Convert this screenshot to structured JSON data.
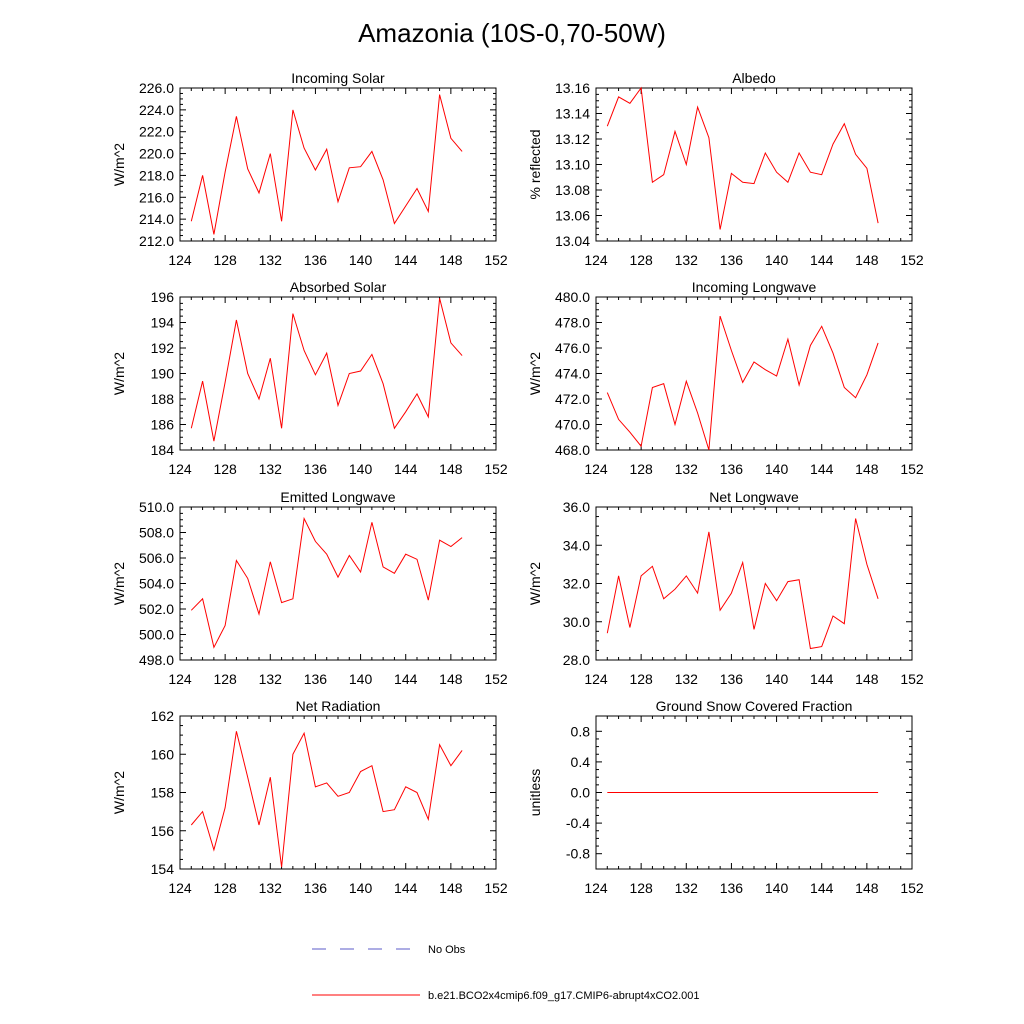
{
  "main_title": "Amazonia (10S-0,70-50W)",
  "chart_data": [
    {
      "type": "line",
      "title": "Incoming Solar",
      "ylabel": "W/m^2",
      "xlabel": "",
      "xlim": [
        124,
        152
      ],
      "ylim": [
        212,
        226
      ],
      "xticks": [
        124,
        128,
        132,
        136,
        140,
        144,
        148,
        152
      ],
      "xtick_labels": [
        "124",
        "128",
        "132",
        "136",
        "140",
        "144",
        "148",
        "152"
      ],
      "yticks": [
        212,
        214,
        216,
        218,
        220,
        222,
        224,
        226
      ],
      "ytick_labels": [
        "212.0",
        "214.0",
        "216.0",
        "218.0",
        "220.0",
        "222.0",
        "224.0",
        "226.0"
      ],
      "x": [
        125,
        126,
        127,
        128,
        129,
        130,
        131,
        132,
        133,
        134,
        135,
        136,
        137,
        138,
        139,
        140,
        141,
        142,
        143,
        144,
        145,
        146,
        147,
        148,
        149
      ],
      "values": [
        213.8,
        218.0,
        212.6,
        218.3,
        223.4,
        218.6,
        216.4,
        220.0,
        213.8,
        224.0,
        220.5,
        218.5,
        220.4,
        215.6,
        218.7,
        218.8,
        220.2,
        217.6,
        213.6,
        215.2,
        216.8,
        214.7,
        225.4,
        221.4,
        220.2
      ]
    },
    {
      "type": "line",
      "title": "Albedo",
      "ylabel": "% reflected",
      "xlabel": "",
      "xlim": [
        124,
        152
      ],
      "ylim": [
        13.04,
        13.16
      ],
      "xticks": [
        124,
        128,
        132,
        136,
        140,
        144,
        148,
        152
      ],
      "xtick_labels": [
        "124",
        "128",
        "132",
        "136",
        "140",
        "144",
        "148",
        "152"
      ],
      "yticks": [
        13.04,
        13.06,
        13.08,
        13.1,
        13.12,
        13.14,
        13.16
      ],
      "ytick_labels": [
        "13.04",
        "13.06",
        "13.08",
        "13.10",
        "13.12",
        "13.14",
        "13.16"
      ],
      "x": [
        125,
        126,
        127,
        128,
        129,
        130,
        131,
        132,
        133,
        134,
        135,
        136,
        137,
        138,
        139,
        140,
        141,
        142,
        143,
        144,
        145,
        146,
        147,
        148,
        149
      ],
      "values": [
        13.13,
        13.153,
        13.148,
        13.16,
        13.086,
        13.092,
        13.126,
        13.1,
        13.145,
        13.121,
        13.049,
        13.093,
        13.086,
        13.085,
        13.109,
        13.094,
        13.086,
        13.109,
        13.094,
        13.092,
        13.116,
        13.132,
        13.108,
        13.097,
        13.054
      ]
    },
    {
      "type": "line",
      "title": "Absorbed Solar",
      "ylabel": "W/m^2",
      "xlabel": "",
      "xlim": [
        124,
        152
      ],
      "ylim": [
        184,
        196
      ],
      "xticks": [
        124,
        128,
        132,
        136,
        140,
        144,
        148,
        152
      ],
      "xtick_labels": [
        "124",
        "128",
        "132",
        "136",
        "140",
        "144",
        "148",
        "152"
      ],
      "yticks": [
        184,
        186,
        188,
        190,
        192,
        194,
        196
      ],
      "ytick_labels": [
        "184",
        "186",
        "188",
        "190",
        "192",
        "194",
        "196"
      ],
      "x": [
        125,
        126,
        127,
        128,
        129,
        130,
        131,
        132,
        133,
        134,
        135,
        136,
        137,
        138,
        139,
        140,
        141,
        142,
        143,
        144,
        145,
        146,
        147,
        148,
        149
      ],
      "values": [
        185.7,
        189.4,
        184.7,
        189.3,
        194.2,
        190.0,
        188.0,
        191.2,
        185.7,
        194.7,
        191.8,
        189.9,
        191.6,
        187.5,
        190.0,
        190.2,
        191.5,
        189.2,
        185.7,
        187.0,
        188.4,
        186.6,
        195.9,
        192.4,
        191.4
      ]
    },
    {
      "type": "line",
      "title": "Incoming Longwave",
      "ylabel": "W/m^2",
      "xlabel": "",
      "xlim": [
        124,
        152
      ],
      "ylim": [
        468,
        480
      ],
      "xticks": [
        124,
        128,
        132,
        136,
        140,
        144,
        148,
        152
      ],
      "xtick_labels": [
        "124",
        "128",
        "132",
        "136",
        "140",
        "144",
        "148",
        "152"
      ],
      "yticks": [
        468,
        470,
        472,
        474,
        476,
        478,
        480
      ],
      "ytick_labels": [
        "468.0",
        "470.0",
        "472.0",
        "474.0",
        "476.0",
        "478.0",
        "480.0"
      ],
      "x": [
        125,
        126,
        127,
        128,
        129,
        130,
        131,
        132,
        133,
        134,
        135,
        136,
        137,
        138,
        139,
        140,
        141,
        142,
        143,
        144,
        145,
        146,
        147,
        148,
        149
      ],
      "values": [
        472.5,
        470.4,
        469.4,
        468.3,
        472.9,
        473.2,
        470.0,
        473.4,
        470.9,
        468.0,
        478.5,
        475.8,
        473.3,
        474.9,
        474.3,
        473.8,
        476.7,
        473.1,
        476.2,
        477.7,
        475.6,
        472.9,
        472.1,
        473.9,
        476.4
      ]
    },
    {
      "type": "line",
      "title": "Emitted Longwave",
      "ylabel": "W/m^2",
      "xlabel": "",
      "xlim": [
        124,
        152
      ],
      "ylim": [
        498,
        510
      ],
      "xticks": [
        124,
        128,
        132,
        136,
        140,
        144,
        148,
        152
      ],
      "xtick_labels": [
        "124",
        "128",
        "132",
        "136",
        "140",
        "144",
        "148",
        "152"
      ],
      "yticks": [
        498,
        500,
        502,
        504,
        506,
        508,
        510
      ],
      "ytick_labels": [
        "498.0",
        "500.0",
        "502.0",
        "504.0",
        "506.0",
        "508.0",
        "510.0"
      ],
      "x": [
        125,
        126,
        127,
        128,
        129,
        130,
        131,
        132,
        133,
        134,
        135,
        136,
        137,
        138,
        139,
        140,
        141,
        142,
        143,
        144,
        145,
        146,
        147,
        148,
        149
      ],
      "values": [
        501.9,
        502.8,
        499.0,
        500.7,
        505.8,
        504.4,
        501.6,
        505.7,
        502.5,
        502.8,
        509.1,
        507.3,
        506.3,
        504.5,
        506.2,
        504.9,
        508.8,
        505.3,
        504.8,
        506.3,
        505.9,
        502.7,
        507.4,
        506.9,
        507.6
      ]
    },
    {
      "type": "line",
      "title": "Net Longwave",
      "ylabel": "W/m^2",
      "xlabel": "",
      "xlim": [
        124,
        152
      ],
      "ylim": [
        28,
        36
      ],
      "xticks": [
        124,
        128,
        132,
        136,
        140,
        144,
        148,
        152
      ],
      "xtick_labels": [
        "124",
        "128",
        "132",
        "136",
        "140",
        "144",
        "148",
        "152"
      ],
      "yticks": [
        28,
        30,
        32,
        34,
        36
      ],
      "ytick_labels": [
        "28.0",
        "30.0",
        "32.0",
        "34.0",
        "36.0"
      ],
      "x": [
        125,
        126,
        127,
        128,
        129,
        130,
        131,
        132,
        133,
        134,
        135,
        136,
        137,
        138,
        139,
        140,
        141,
        142,
        143,
        144,
        145,
        146,
        147,
        148,
        149
      ],
      "values": [
        29.4,
        32.4,
        29.7,
        32.4,
        32.9,
        31.2,
        31.7,
        32.4,
        31.5,
        34.7,
        30.6,
        31.5,
        33.1,
        29.6,
        32.0,
        31.1,
        32.1,
        32.2,
        28.6,
        28.7,
        30.3,
        29.9,
        35.4,
        33.0,
        31.2
      ]
    },
    {
      "type": "line",
      "title": "Net Radiation",
      "ylabel": "W/m^2",
      "xlabel": "",
      "xlim": [
        124,
        152
      ],
      "ylim": [
        154,
        162
      ],
      "xticks": [
        124,
        128,
        132,
        136,
        140,
        144,
        148,
        152
      ],
      "xtick_labels": [
        "124",
        "128",
        "132",
        "136",
        "140",
        "144",
        "148",
        "152"
      ],
      "yticks": [
        154,
        156,
        158,
        160,
        162
      ],
      "ytick_labels": [
        "154",
        "156",
        "158",
        "160",
        "162"
      ],
      "x": [
        125,
        126,
        127,
        128,
        129,
        130,
        131,
        132,
        133,
        134,
        135,
        136,
        137,
        138,
        139,
        140,
        141,
        142,
        143,
        144,
        145,
        146,
        147,
        148,
        149
      ],
      "values": [
        156.3,
        157.0,
        155.0,
        157.2,
        161.2,
        158.8,
        156.3,
        158.8,
        154.1,
        160.0,
        161.1,
        158.3,
        158.5,
        157.8,
        158.0,
        159.1,
        159.4,
        157.0,
        157.1,
        158.3,
        158.0,
        156.6,
        160.5,
        159.4,
        160.2
      ]
    },
    {
      "type": "line",
      "title": "Ground Snow Covered Fraction",
      "ylabel": "unitless",
      "xlabel": "",
      "xlim": [
        124,
        152
      ],
      "ylim": [
        -1.0,
        1.0
      ],
      "xticks": [
        124,
        128,
        132,
        136,
        140,
        144,
        148,
        152
      ],
      "xtick_labels": [
        "124",
        "128",
        "132",
        "136",
        "140",
        "144",
        "148",
        "152"
      ],
      "yticks": [
        -0.8,
        -0.4,
        0.0,
        0.4,
        0.8
      ],
      "ytick_labels": [
        "-0.8",
        "-0.4",
        "0.0",
        "0.4",
        "0.8"
      ],
      "x": [
        125,
        126,
        127,
        128,
        129,
        130,
        131,
        132,
        133,
        134,
        135,
        136,
        137,
        138,
        139,
        140,
        141,
        142,
        143,
        144,
        145,
        146,
        147,
        148,
        149
      ],
      "values": [
        0,
        0,
        0,
        0,
        0,
        0,
        0,
        0,
        0,
        0,
        0,
        0,
        0,
        0,
        0,
        0,
        0,
        0,
        0,
        0,
        0,
        0,
        0,
        0,
        0
      ]
    }
  ],
  "legend": {
    "placement": "bottom-center",
    "entries": [
      {
        "label": "No Obs",
        "color": "#5b5bc8",
        "style": "dashed"
      },
      {
        "label": "b.e21.BCO2x4cmip6.f09_g17.CMIP6-abrupt4xCO2.001",
        "color": "#ff0000",
        "style": "solid"
      }
    ]
  },
  "colors": {
    "series": "#ff0000",
    "axes": "#000000",
    "obs": "#5b5bc8"
  }
}
